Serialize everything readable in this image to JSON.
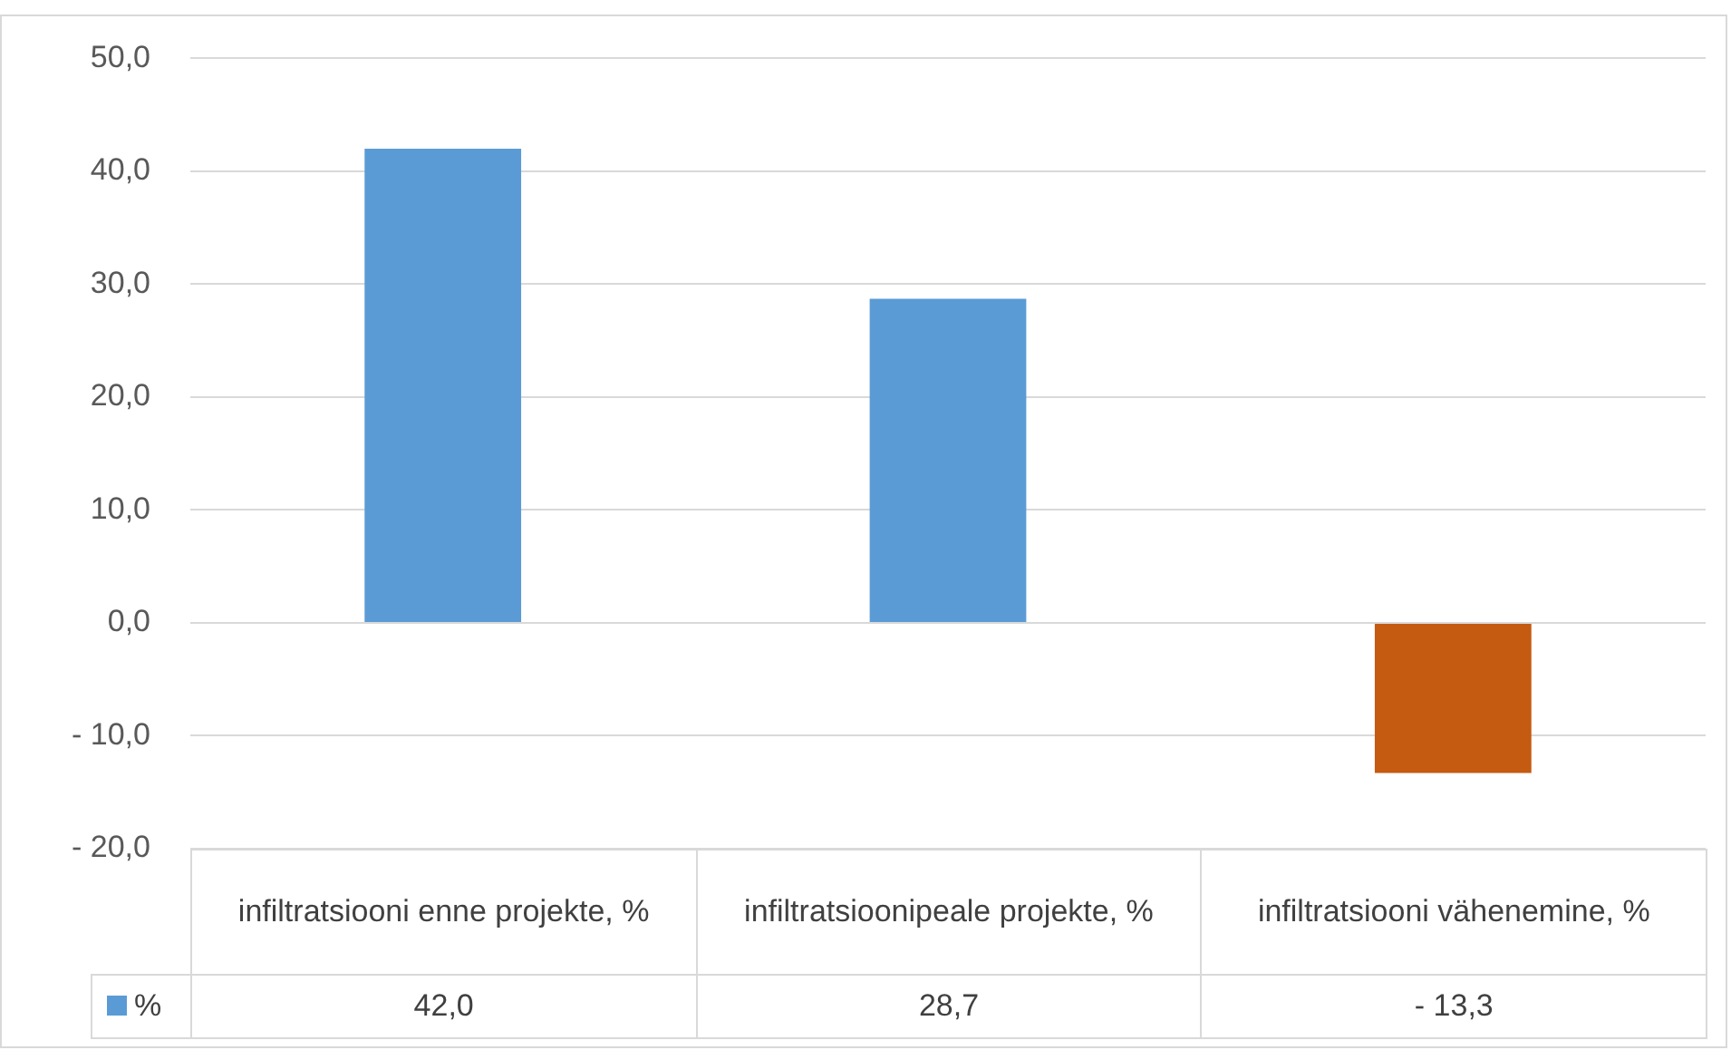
{
  "chart_data": {
    "type": "bar",
    "categories": [
      "infiltratsiooni enne projekte, %",
      "infiltratsioonipeale projekte, %",
      "infiltratsiooni vähenemine, %"
    ],
    "series": [
      {
        "name": "%",
        "color": "#5b9bd5",
        "colors": [
          "#5b9bd5",
          "#5b9bd5",
          "#c55a11"
        ],
        "values": [
          42.0,
          28.7,
          -13.3
        ],
        "value_labels": [
          "42,0",
          "28,7",
          "- 13,3"
        ]
      }
    ],
    "ylim": [
      -20,
      50
    ],
    "yticks": [
      {
        "value": -20,
        "label": "- 20,0"
      },
      {
        "value": -10,
        "label": "- 10,0"
      },
      {
        "value": 0,
        "label": "0,0"
      },
      {
        "value": 10,
        "label": "10,0"
      },
      {
        "value": 20,
        "label": "20,0"
      },
      {
        "value": 30,
        "label": "30,0"
      },
      {
        "value": 40,
        "label": "40,0"
      },
      {
        "value": 50,
        "label": "50,0"
      }
    ],
    "grid": "y",
    "legend": "bottom"
  }
}
